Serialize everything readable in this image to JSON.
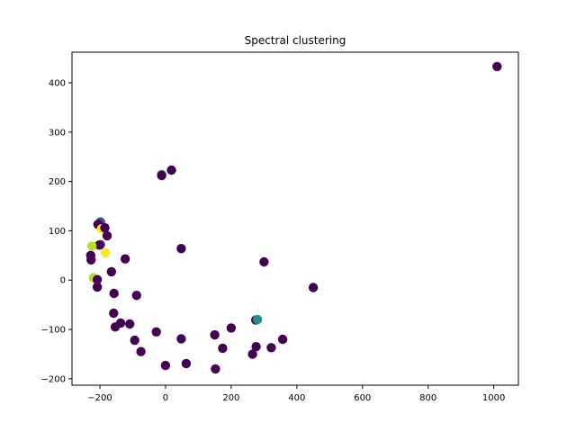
{
  "chart_data": {
    "type": "scatter",
    "title": "Spectral clustering",
    "xlabel": "",
    "ylabel": "",
    "xlim": [
      -285,
      1075
    ],
    "ylim": [
      -213,
      462
    ],
    "xticks": [
      -200,
      0,
      200,
      400,
      600,
      800,
      1000
    ],
    "yticks": [
      -200,
      -100,
      0,
      100,
      200,
      300,
      400
    ],
    "grid": false,
    "legend": "none",
    "cluster_colors": {
      "0": "#440154",
      "1": "#3b528b",
      "2": "#21918c",
      "3": "#5ec962",
      "4": "#b5de2b",
      "5": "#fde725"
    },
    "points": [
      {
        "x": 1010,
        "y": 433,
        "cluster": 0
      },
      {
        "x": -12,
        "y": 214,
        "cluster": 2
      },
      {
        "x": -12,
        "y": 212,
        "cluster": 0
      },
      {
        "x": 18,
        "y": 223,
        "cluster": 0
      },
      {
        "x": 48,
        "y": 64,
        "cluster": 0
      },
      {
        "x": 300,
        "y": 37,
        "cluster": 0
      },
      {
        "x": 450,
        "y": -15,
        "cluster": 0
      },
      {
        "x": -198,
        "y": 118,
        "cluster": 1
      },
      {
        "x": -206,
        "y": 113,
        "cluster": 0
      },
      {
        "x": -195,
        "y": 104,
        "cluster": 5
      },
      {
        "x": -185,
        "y": 106,
        "cluster": 0
      },
      {
        "x": -178,
        "y": 90,
        "cluster": 0
      },
      {
        "x": -198,
        "y": 72,
        "cluster": 1
      },
      {
        "x": -202,
        "y": 71,
        "cluster": 0
      },
      {
        "x": -224,
        "y": 69,
        "cluster": 4
      },
      {
        "x": -228,
        "y": 50,
        "cluster": 0
      },
      {
        "x": -227,
        "y": 41,
        "cluster": 0
      },
      {
        "x": -183,
        "y": 55,
        "cluster": 5
      },
      {
        "x": -123,
        "y": 43,
        "cluster": 0
      },
      {
        "x": -165,
        "y": 17,
        "cluster": 0
      },
      {
        "x": -220,
        "y": 5,
        "cluster": 4
      },
      {
        "x": -208,
        "y": 1,
        "cluster": 0
      },
      {
        "x": -208,
        "y": -14,
        "cluster": 0
      },
      {
        "x": -157,
        "y": -27,
        "cluster": 0
      },
      {
        "x": -88,
        "y": -31,
        "cluster": 0
      },
      {
        "x": -158,
        "y": -67,
        "cluster": 0
      },
      {
        "x": -137,
        "y": -87,
        "cluster": 0
      },
      {
        "x": -153,
        "y": -95,
        "cluster": 0
      },
      {
        "x": -109,
        "y": -89,
        "cluster": 0
      },
      {
        "x": -28,
        "y": -105,
        "cluster": 0
      },
      {
        "x": -94,
        "y": -122,
        "cluster": 0
      },
      {
        "x": -75,
        "y": -145,
        "cluster": 0
      },
      {
        "x": 48,
        "y": -119,
        "cluster": 0
      },
      {
        "x": 150,
        "y": -111,
        "cluster": 0
      },
      {
        "x": 200,
        "y": -97,
        "cluster": 0
      },
      {
        "x": 174,
        "y": -138,
        "cluster": 0
      },
      {
        "x": 275,
        "y": -81,
        "cluster": 0
      },
      {
        "x": 280,
        "y": -80,
        "cluster": 2
      },
      {
        "x": 276,
        "y": -135,
        "cluster": 0
      },
      {
        "x": 322,
        "y": -137,
        "cluster": 0
      },
      {
        "x": 357,
        "y": -120,
        "cluster": 0
      },
      {
        "x": 265,
        "y": -150,
        "cluster": 0
      },
      {
        "x": 0,
        "y": -173,
        "cluster": 0
      },
      {
        "x": 63,
        "y": -169,
        "cluster": 0
      },
      {
        "x": 152,
        "y": -180,
        "cluster": 0
      }
    ]
  }
}
